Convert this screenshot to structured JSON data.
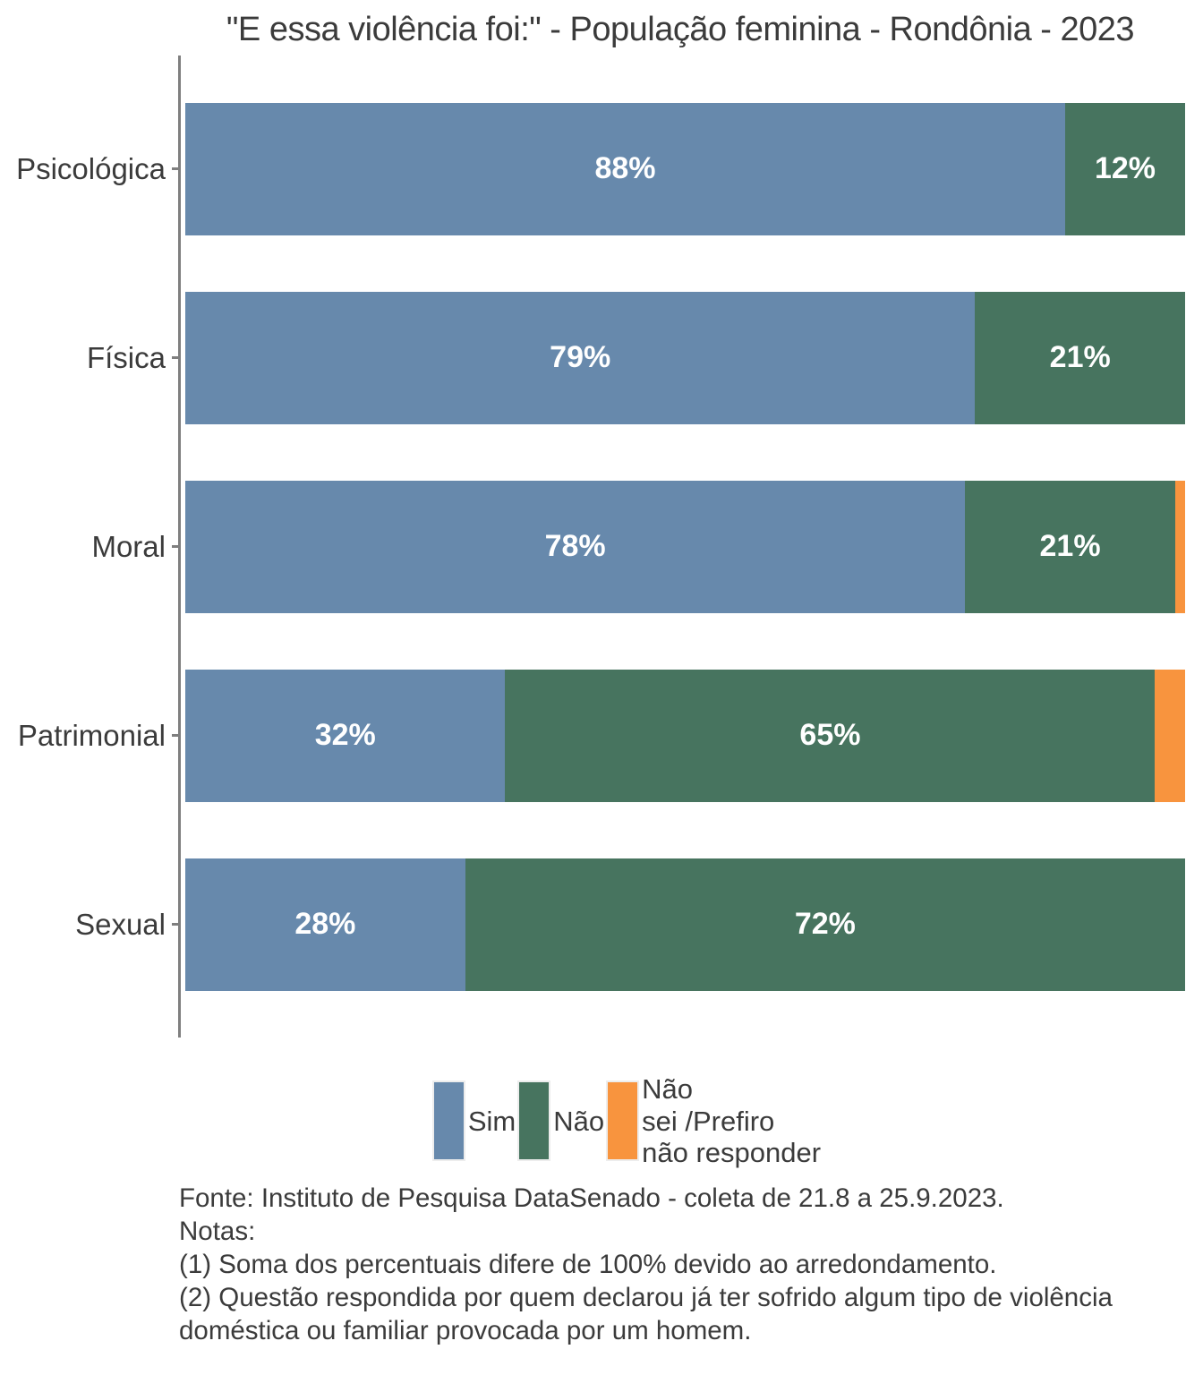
{
  "chart_data": {
    "type": "bar",
    "orientation": "horizontal",
    "stacked": true,
    "title": "\"E essa violência foi:\" - População feminina - Rondônia - 2023",
    "categories": [
      "Psicológica",
      "Física",
      "Moral",
      "Patrimonial",
      "Sexual"
    ],
    "series": [
      {
        "name": "Sim",
        "color": "#6789ac",
        "values": [
          88,
          79,
          78,
          32,
          28
        ]
      },
      {
        "name": "Não",
        "color": "#47745f",
        "values": [
          12,
          21,
          21,
          65,
          72
        ]
      },
      {
        "name": "Não sei /Prefiro não responder",
        "color": "#f8943e",
        "values": [
          0,
          0,
          1,
          3,
          0
        ]
      }
    ],
    "value_suffix": "%",
    "min_label_value": 5,
    "xlim": [
      0,
      100
    ],
    "grid": false,
    "legend_position": "bottom"
  },
  "legend": {
    "items": [
      {
        "label": "Sim",
        "color": "#6789ac"
      },
      {
        "label": "Não",
        "color": "#47745f"
      },
      {
        "label": "Não\nsei /Prefiro\nnão responder",
        "color": "#f8943e"
      }
    ]
  },
  "footer": {
    "fonte": "Fonte: Instituto de Pesquisa DataSenado - coleta de 21.8 a 25.9.2023.",
    "notas_label": "Notas:",
    "nota1": "(1) Soma dos percentuais difere de 100% devido ao arredondamento.",
    "nota2": "(2) Questão respondida por quem declarou já ter sofrido algum tipo de violência doméstica ou familiar provocada por um homem."
  },
  "style": {
    "axis_color": "#7f7f7f",
    "text_color": "#3b3b3b",
    "bar_label_color": "#ffffff"
  }
}
